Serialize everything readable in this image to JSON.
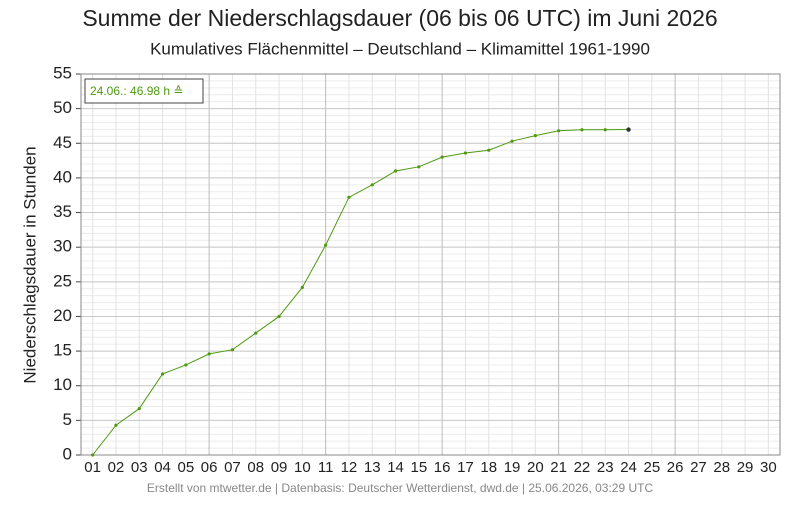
{
  "chart_data": {
    "type": "line",
    "title": "Summe der Niederschlagsdauer (06 bis 06 UTC) im Juni 2026",
    "subtitle": "Kumulatives Flächenmittel – Deutschland – Klimamittel 1961-1990",
    "y_label": "Niederschlagsdauer in Stunden",
    "annotation": "24.06.: 46.98 h ≙",
    "footer": "Erstellt von mtwetter.de | Datenbasis: Deutscher Wetterdienst, dwd.de | 25.06.2026, 03:29 UTC",
    "categories": [
      "01",
      "02",
      "03",
      "04",
      "05",
      "06",
      "07",
      "08",
      "09",
      "10",
      "11",
      "12",
      "13",
      "14",
      "15",
      "16",
      "17",
      "18",
      "19",
      "20",
      "21",
      "22",
      "23",
      "24",
      "25",
      "26",
      "27",
      "28",
      "29",
      "30"
    ],
    "series": [
      {
        "color": "#4f9a10",
        "values": [
          0,
          4.3,
          6.7,
          11.7,
          13.0,
          14.6,
          15.2,
          17.6,
          20.0,
          24.2,
          30.3,
          37.2,
          39.0,
          41.0,
          41.6,
          43.0,
          43.6,
          44.0,
          45.3,
          46.1,
          46.8,
          46.95,
          46.95,
          46.98,
          null,
          null,
          null,
          null,
          null,
          null
        ]
      }
    ],
    "ylim": [
      0,
      55
    ],
    "yticks": [
      0,
      5,
      10,
      15,
      20,
      25,
      30,
      35,
      40,
      45,
      50,
      55
    ],
    "grid": true
  }
}
